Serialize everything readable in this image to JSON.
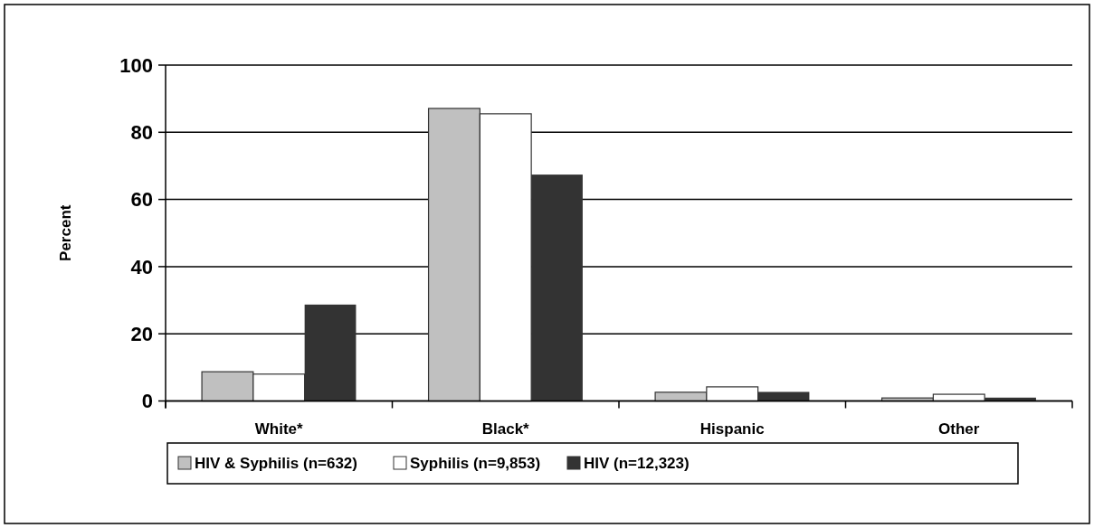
{
  "chart_data": {
    "type": "bar",
    "ylabel": "Percent",
    "categories": [
      "White*",
      "Black*",
      "Hispanic",
      "Other"
    ],
    "series": [
      {
        "name": "HIV & Syphilis (n=632)",
        "color": "#c0c0c0",
        "values": [
          8.7,
          87.1,
          2.6,
          0.9
        ]
      },
      {
        "name": "Syphilis (n=9,853)",
        "color": "#ffffff",
        "values": [
          8.0,
          85.5,
          4.2,
          2.0
        ]
      },
      {
        "name": "HIV (n=12,323)",
        "color": "#333333",
        "values": [
          28.7,
          67.4,
          2.7,
          1.0
        ]
      }
    ],
    "ylim": [
      0,
      100
    ],
    "yticks": [
      0,
      20,
      40,
      60,
      80,
      100
    ],
    "grid": "y",
    "legend": "bottom"
  }
}
